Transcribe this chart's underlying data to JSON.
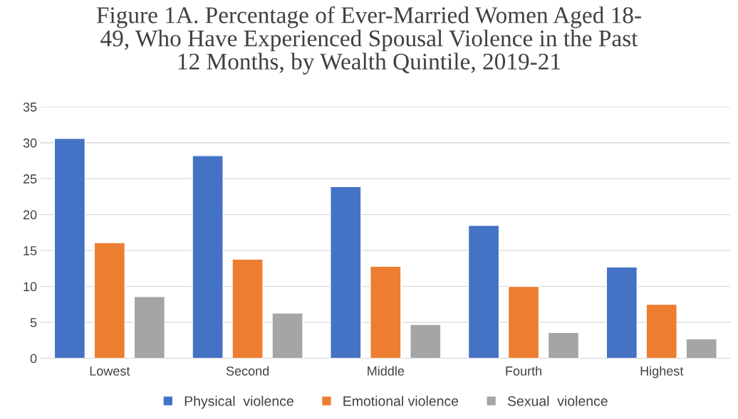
{
  "chart_data": {
    "type": "bar",
    "title": "Figure 1A. Percentage of Ever-Married Women Aged 18-\n49, Who Have Experienced Spousal Violence in the Past\n12 Months, by Wealth Quintile, 2019-21",
    "categories": [
      "Lowest",
      "Second",
      "Middle",
      "Fourth",
      "Highest"
    ],
    "series": [
      {
        "name": "Physical  violence",
        "color": "#4472c4",
        "values": [
          30.6,
          28.2,
          23.9,
          18.5,
          12.7
        ]
      },
      {
        "name": "Emotional violence",
        "color": "#ed7d31",
        "values": [
          16.1,
          13.8,
          12.8,
          10.0,
          7.5
        ]
      },
      {
        "name": "Sexual  violence",
        "color": "#a5a5a5",
        "values": [
          8.6,
          6.3,
          4.7,
          3.6,
          2.7
        ]
      }
    ],
    "ylim": [
      0,
      35
    ],
    "yticks": [
      0,
      5,
      10,
      15,
      20,
      25,
      30,
      35
    ],
    "grid": "y",
    "legend": "bottom"
  }
}
